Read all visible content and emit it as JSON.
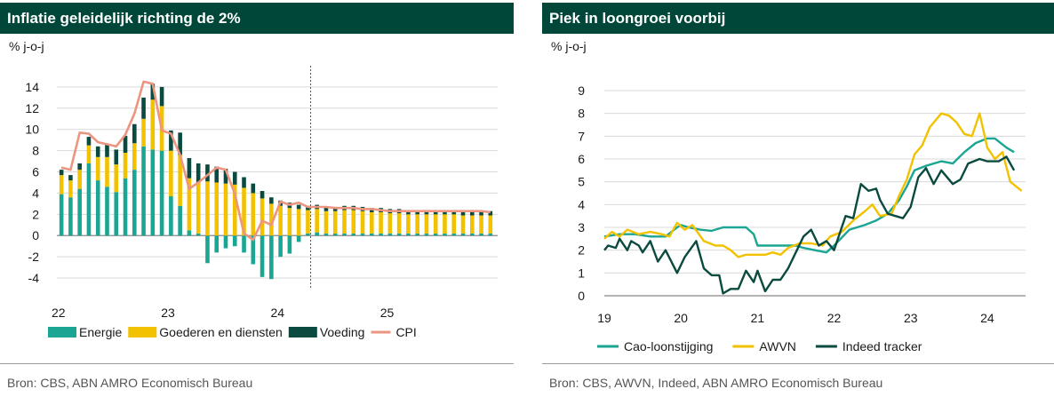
{
  "chart_data": [
    {
      "type": "bar",
      "title": "Inflatie geleidelijk richting de 2%",
      "ylabel": "% j-o-j",
      "source": "Bron: CBS, ABN AMRO Economisch Bureau",
      "ylim": [
        -5,
        16
      ],
      "yticks": [
        -4,
        -2,
        0,
        2,
        4,
        6,
        8,
        10,
        12,
        14
      ],
      "xticks": [
        {
          "label": "22",
          "month": 0
        },
        {
          "label": "23",
          "month": 12
        },
        {
          "label": "24",
          "month": 24
        },
        {
          "label": "25",
          "month": 36
        }
      ],
      "forecast_start_month": 28,
      "grid": true,
      "legend_position": "bottom",
      "colors": {
        "energie": "#1aa693",
        "goederen": "#f2c200",
        "voeding": "#0a4a3f",
        "cpi": "#ec9580",
        "grid": "#d9d9d9",
        "divider": "#555555"
      },
      "series": [
        {
          "name": "Energie",
          "values": [
            3.9,
            3.6,
            4.4,
            6.8,
            5.2,
            4.6,
            4.1,
            5.4,
            6.2,
            8.4,
            8.1,
            8.0,
            3.7,
            2.8,
            0.5,
            0.2,
            -2.6,
            -1.6,
            -1.2,
            -1.0,
            -1.6,
            -2.7,
            -3.9,
            -4.1,
            -2.0,
            -1.7,
            -0.6,
            0.2,
            0.3,
            0.2,
            0.2,
            0.2,
            0.2,
            0.2,
            0.2,
            0.2,
            0.2,
            0.2,
            0.2,
            0.2,
            0.2,
            0.2,
            0.2,
            0.2,
            0.2,
            0.2,
            0.2,
            0.2
          ]
        },
        {
          "name": "Goederen en diensten",
          "values": [
            1.8,
            1.6,
            1.8,
            1.7,
            2.2,
            2.8,
            2.6,
            2.4,
            2.5,
            2.6,
            4.7,
            4.2,
            4.3,
            4.8,
            4.9,
            4.8,
            5.1,
            5.0,
            4.9,
            4.8,
            4.5,
            4.0,
            3.5,
            3.0,
            2.8,
            2.6,
            2.5,
            2.2,
            2.2,
            2.1,
            2.1,
            2.2,
            2.2,
            2.1,
            2.0,
            2.0,
            1.9,
            1.9,
            1.8,
            1.8,
            1.8,
            1.8,
            1.8,
            1.8,
            1.7,
            1.7,
            1.7,
            1.7
          ]
        },
        {
          "name": "Voeding",
          "values": [
            0.5,
            0.5,
            0.6,
            0.8,
            1.0,
            1.2,
            1.4,
            1.6,
            1.8,
            2.0,
            1.5,
            1.8,
            1.9,
            2.1,
            1.9,
            1.8,
            1.6,
            1.5,
            1.4,
            1.2,
            1.0,
            0.9,
            0.7,
            0.6,
            0.5,
            0.5,
            0.4,
            0.4,
            0.4,
            0.4,
            0.4,
            0.4,
            0.4,
            0.4,
            0.4,
            0.4,
            0.4,
            0.4,
            0.4,
            0.4,
            0.4,
            0.4,
            0.4,
            0.4,
            0.4,
            0.4,
            0.4,
            0.4
          ]
        },
        {
          "name": "CPI",
          "type": "line",
          "values": [
            6.4,
            6.2,
            9.7,
            9.6,
            8.8,
            8.6,
            8.4,
            9.5,
            11.5,
            14.5,
            14.3,
            9.9,
            9.6,
            7.6,
            4.4,
            5.0,
            5.7,
            6.4,
            6.2,
            3.9,
            0.2,
            -0.4,
            1.4,
            1.0,
            3.2,
            2.9,
            3.1,
            2.7,
            2.7,
            2.7,
            2.6,
            2.6,
            2.6,
            2.5,
            2.5,
            2.4,
            2.3,
            2.3,
            2.3,
            2.3,
            2.3,
            2.3,
            2.3,
            2.3,
            2.3,
            2.3,
            2.3,
            2.2
          ]
        }
      ]
    },
    {
      "type": "line",
      "title": "Piek in loongroei voorbij",
      "ylabel": "% j-o-j",
      "source": "Bron: CBS, AWVN, Indeed, ABN AMRO Economisch Bureau",
      "ylim": [
        0,
        9
      ],
      "yticks": [
        0,
        1,
        2,
        3,
        4,
        5,
        6,
        7,
        8,
        9
      ],
      "xlim": [
        2019,
        2024.5
      ],
      "xticks": [
        {
          "label": "19",
          "year": 2019
        },
        {
          "label": "20",
          "year": 2020
        },
        {
          "label": "21",
          "year": 2021
        },
        {
          "label": "22",
          "year": 2022
        },
        {
          "label": "23",
          "year": 2023
        },
        {
          "label": "24",
          "year": 2024
        }
      ],
      "grid": true,
      "legend_position": "bottom",
      "colors": {
        "cao": "#1aa693",
        "awvn": "#f2c200",
        "indeed": "#0a4a3f",
        "grid": "#d9d9d9"
      },
      "series": [
        {
          "name": "Cao-loonstijging",
          "points": [
            [
              2019.0,
              2.6
            ],
            [
              2019.2,
              2.7
            ],
            [
              2019.4,
              2.7
            ],
            [
              2019.6,
              2.6
            ],
            [
              2019.8,
              2.6
            ],
            [
              2019.95,
              3.0
            ],
            [
              2020.0,
              3.1
            ],
            [
              2020.1,
              3.0
            ],
            [
              2020.25,
              2.9
            ],
            [
              2020.4,
              2.85
            ],
            [
              2020.55,
              3.0
            ],
            [
              2020.7,
              3.0
            ],
            [
              2020.85,
              3.0
            ],
            [
              2020.95,
              2.7
            ],
            [
              2021.0,
              2.2
            ],
            [
              2021.2,
              2.2
            ],
            [
              2021.35,
              2.2
            ],
            [
              2021.5,
              2.2
            ],
            [
              2021.6,
              2.1
            ],
            [
              2021.75,
              2.0
            ],
            [
              2021.9,
              1.9
            ],
            [
              2022.0,
              2.2
            ],
            [
              2022.2,
              2.9
            ],
            [
              2022.4,
              3.1
            ],
            [
              2022.55,
              3.3
            ],
            [
              2022.7,
              3.6
            ],
            [
              2022.85,
              4.2
            ],
            [
              2022.95,
              4.8
            ],
            [
              2023.05,
              5.5
            ],
            [
              2023.2,
              5.7
            ],
            [
              2023.4,
              5.9
            ],
            [
              2023.55,
              5.8
            ],
            [
              2023.7,
              6.3
            ],
            [
              2023.85,
              6.7
            ],
            [
              2024.0,
              6.9
            ],
            [
              2024.1,
              6.9
            ],
            [
              2024.25,
              6.5
            ],
            [
              2024.35,
              6.3
            ]
          ]
        },
        {
          "name": "AWVN",
          "points": [
            [
              2019.0,
              2.5
            ],
            [
              2019.1,
              2.8
            ],
            [
              2019.2,
              2.6
            ],
            [
              2019.3,
              2.9
            ],
            [
              2019.45,
              2.7
            ],
            [
              2019.6,
              2.8
            ],
            [
              2019.75,
              2.7
            ],
            [
              2019.85,
              2.6
            ],
            [
              2019.95,
              3.2
            ],
            [
              2020.05,
              2.9
            ],
            [
              2020.15,
              3.1
            ],
            [
              2020.3,
              2.4
            ],
            [
              2020.45,
              2.2
            ],
            [
              2020.55,
              2.2
            ],
            [
              2020.65,
              2.0
            ],
            [
              2020.75,
              1.7
            ],
            [
              2020.85,
              1.8
            ],
            [
              2020.95,
              1.8
            ],
            [
              2021.1,
              1.8
            ],
            [
              2021.2,
              1.9
            ],
            [
              2021.3,
              1.8
            ],
            [
              2021.4,
              2.1
            ],
            [
              2021.55,
              2.3
            ],
            [
              2021.7,
              2.3
            ],
            [
              2021.85,
              2.2
            ],
            [
              2021.95,
              2.6
            ],
            [
              2022.1,
              2.8
            ],
            [
              2022.25,
              3.3
            ],
            [
              2022.4,
              3.7
            ],
            [
              2022.5,
              4.0
            ],
            [
              2022.6,
              3.5
            ],
            [
              2022.75,
              3.6
            ],
            [
              2022.85,
              4.4
            ],
            [
              2022.95,
              5.1
            ],
            [
              2023.05,
              6.2
            ],
            [
              2023.15,
              6.6
            ],
            [
              2023.25,
              7.4
            ],
            [
              2023.4,
              8.0
            ],
            [
              2023.5,
              7.9
            ],
            [
              2023.6,
              7.6
            ],
            [
              2023.7,
              7.1
            ],
            [
              2023.8,
              7.0
            ],
            [
              2023.9,
              8.0
            ],
            [
              2024.0,
              6.5
            ],
            [
              2024.1,
              6.0
            ],
            [
              2024.2,
              6.3
            ],
            [
              2024.3,
              5.0
            ],
            [
              2024.45,
              4.6
            ]
          ]
        },
        {
          "name": "Indeed tracker",
          "points": [
            [
              2019.0,
              2.0
            ],
            [
              2019.05,
              2.2
            ],
            [
              2019.15,
              2.1
            ],
            [
              2019.2,
              2.5
            ],
            [
              2019.3,
              2.0
            ],
            [
              2019.35,
              2.4
            ],
            [
              2019.45,
              2.2
            ],
            [
              2019.5,
              1.9
            ],
            [
              2019.6,
              2.4
            ],
            [
              2019.7,
              1.5
            ],
            [
              2019.8,
              2.0
            ],
            [
              2019.95,
              1.0
            ],
            [
              2020.05,
              1.7
            ],
            [
              2020.2,
              2.4
            ],
            [
              2020.3,
              1.2
            ],
            [
              2020.4,
              0.9
            ],
            [
              2020.5,
              0.9
            ],
            [
              2020.55,
              0.1
            ],
            [
              2020.65,
              0.3
            ],
            [
              2020.75,
              0.3
            ],
            [
              2020.85,
              1.1
            ],
            [
              2020.95,
              0.6
            ],
            [
              2021.0,
              1.1
            ],
            [
              2021.1,
              0.2
            ],
            [
              2021.2,
              0.7
            ],
            [
              2021.3,
              0.7
            ],
            [
              2021.4,
              1.2
            ],
            [
              2021.5,
              1.9
            ],
            [
              2021.6,
              2.6
            ],
            [
              2021.7,
              2.9
            ],
            [
              2021.8,
              2.2
            ],
            [
              2021.9,
              2.4
            ],
            [
              2022.0,
              2.0
            ],
            [
              2022.15,
              3.5
            ],
            [
              2022.25,
              3.4
            ],
            [
              2022.35,
              4.9
            ],
            [
              2022.45,
              4.6
            ],
            [
              2022.55,
              4.7
            ],
            [
              2022.6,
              4.2
            ],
            [
              2022.7,
              3.6
            ],
            [
              2022.8,
              3.5
            ],
            [
              2022.9,
              3.4
            ],
            [
              2023.0,
              3.9
            ],
            [
              2023.1,
              5.2
            ],
            [
              2023.2,
              5.6
            ],
            [
              2023.3,
              4.9
            ],
            [
              2023.4,
              5.5
            ],
            [
              2023.55,
              4.9
            ],
            [
              2023.65,
              5.1
            ],
            [
              2023.75,
              5.8
            ],
            [
              2023.9,
              6.0
            ],
            [
              2024.0,
              5.9
            ],
            [
              2024.15,
              5.9
            ],
            [
              2024.25,
              6.1
            ],
            [
              2024.35,
              5.5
            ]
          ]
        }
      ]
    }
  ]
}
